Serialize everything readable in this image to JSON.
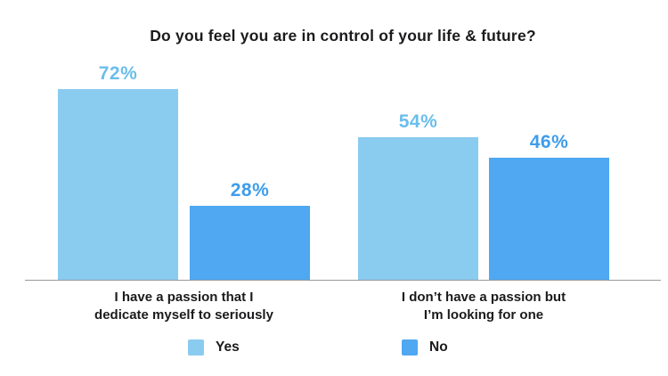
{
  "title": "Do you feel you are in control of your life & future?",
  "colors": {
    "yes_bar": "#8ACBF0",
    "no_bar": "#4FA8F1",
    "yes_label": "#6ABEEC",
    "no_label": "#3E9DEB",
    "axis": "#999999",
    "text": "#1B1B1D"
  },
  "legend": [
    {
      "label": "Yes",
      "series": "yes"
    },
    {
      "label": "No",
      "series": "no"
    }
  ],
  "chart_data": {
    "type": "bar",
    "title": "Do you feel you are in control of your life & future?",
    "categories": [
      "I have a passion that I\ndedicate myself to seriously",
      "I don’t have a passion but\nI’m looking for one"
    ],
    "series": [
      {
        "name": "Yes",
        "values": [
          72,
          54
        ]
      },
      {
        "name": "No",
        "values": [
          28,
          46
        ]
      }
    ],
    "value_suffix": "%",
    "ylim": [
      0,
      100
    ],
    "grid": false,
    "legend_position": "bottom"
  }
}
